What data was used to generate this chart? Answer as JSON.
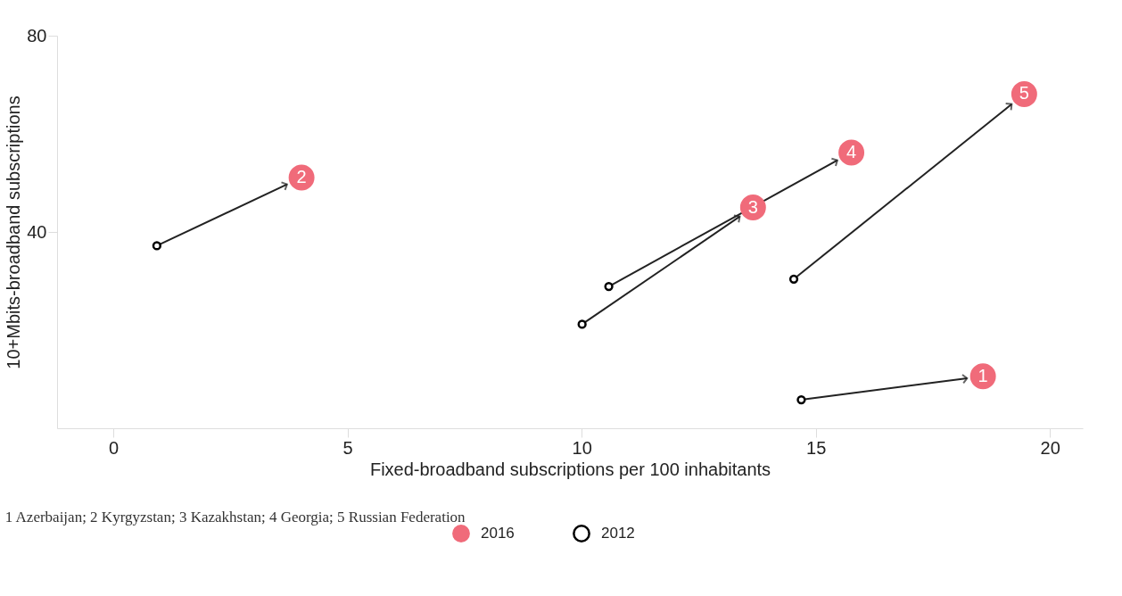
{
  "chart_data": {
    "type": "scatter",
    "xlabel": "Fixed-broadband subscriptions per 100 inhabitants",
    "ylabel": "10+Mbits-broadband subscriptions",
    "series": [
      {
        "name": "2016",
        "color": "#f06b7a",
        "x": [
          18.57,
          4.02,
          13.66,
          15.76,
          19.45
        ],
        "values": [
          10.6,
          51.1,
          45.0,
          56.2,
          68.1
        ]
      },
      {
        "name": "2012",
        "color": "#000000",
        "x": [
          14.69,
          0.93,
          10.01,
          10.58,
          14.53
        ],
        "values": [
          5.8,
          37.2,
          21.2,
          28.9,
          30.4
        ]
      }
    ],
    "xlim": [
      -1.2,
      20.7
    ],
    "xticks": [
      0,
      5,
      10,
      15,
      20
    ],
    "ylim": [
      0,
      80
    ],
    "yticks": [
      40,
      80
    ],
    "grid": false,
    "legend": "bottom",
    "marker": "circle",
    "annotations": [
      "1 Azerbaijan; 2 Kyrgyzstan; 3 Kazakhstan; 4 Georgia; 5 Russian Federation",
      {
        "text": "1",
        "x": 18.57,
        "y": 10.6
      },
      {
        "text": "2",
        "x": 4.02,
        "y": 51.1
      },
      {
        "text": "3",
        "x": 13.66,
        "y": 45.0
      },
      {
        "text": "4",
        "x": 15.76,
        "y": 56.2
      },
      {
        "text": "5",
        "x": 19.45,
        "y": 68.1
      }
    ]
  }
}
